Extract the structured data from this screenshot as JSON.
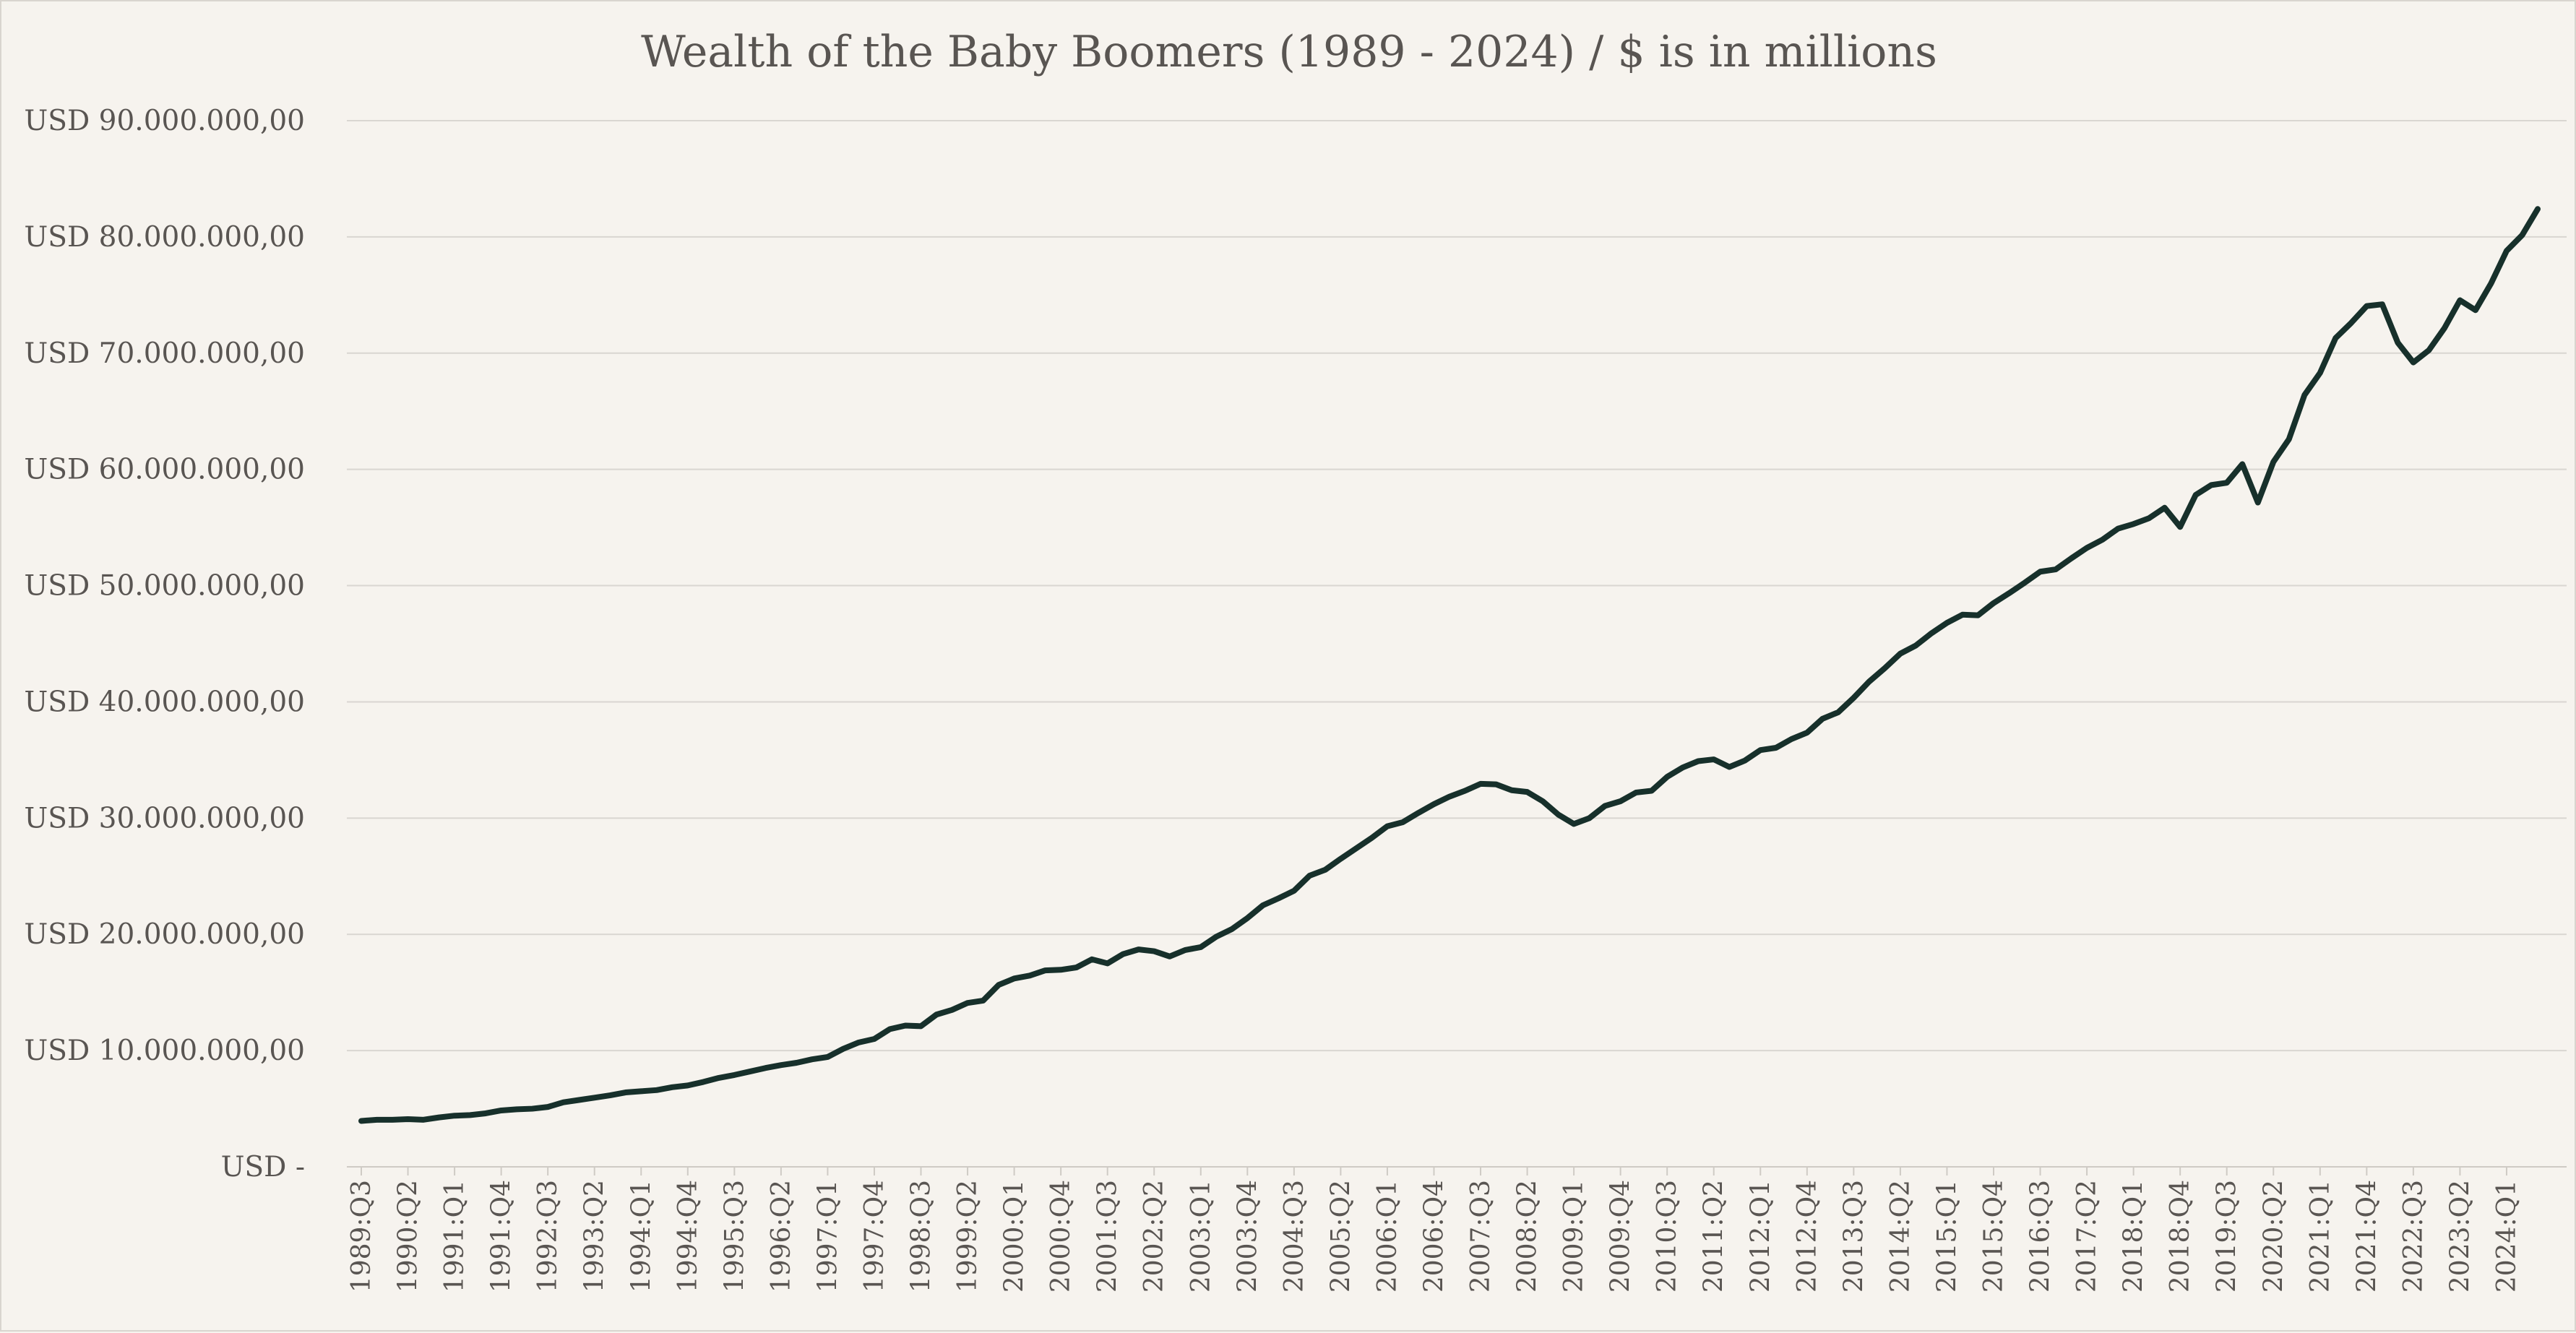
{
  "chart_data": {
    "type": "line",
    "title": "Wealth of the Baby Boomers (1989 - 2024)  / $ is in millions",
    "xlabel": "",
    "ylabel": "",
    "ylim": [
      0,
      90000000
    ],
    "y_ticks": [
      0,
      10000000,
      20000000,
      30000000,
      40000000,
      50000000,
      60000000,
      70000000,
      80000000,
      90000000
    ],
    "y_tick_labels": [
      "USD -",
      "USD 10.000.000,00",
      "USD 20.000.000,00",
      "USD 30.000.000,00",
      "USD 40.000.000,00",
      "USD 50.000.000,00",
      "USD 60.000.000,00",
      "USD 70.000.000,00",
      "USD 80.000.000,00",
      "USD 90.000.000,00"
    ],
    "x_tick_labels": [
      "1989:Q3",
      "1990:Q2",
      "1991:Q1",
      "1991:Q4",
      "1992:Q3",
      "1993:Q2",
      "1994:Q1",
      "1994:Q4",
      "1995:Q3",
      "1996:Q2",
      "1997:Q1",
      "1997:Q4",
      "1998:Q3",
      "1999:Q2",
      "2000:Q1",
      "2000:Q4",
      "2001:Q3",
      "2002:Q2",
      "2003:Q1",
      "2003:Q4",
      "2004:Q3",
      "2005:Q2",
      "2006:Q1",
      "2006:Q4",
      "2007:Q3",
      "2008:Q2",
      "2009:Q1",
      "2009:Q4",
      "2010:Q3",
      "2011:Q2",
      "2012:Q1",
      "2012:Q4",
      "2013:Q3",
      "2014:Q2",
      "2015:Q1",
      "2015:Q4",
      "2016:Q3",
      "2017:Q2",
      "2018:Q1",
      "2018:Q4",
      "2019:Q3",
      "2020:Q2",
      "2021:Q1",
      "2021:Q4",
      "2022:Q3",
      "2023:Q2",
      "2024:Q1"
    ],
    "legend": "none",
    "grid": true,
    "series": [
      {
        "color": "#17302b",
        "x": [
          "1989:Q3",
          "1989:Q4",
          "1990:Q1",
          "1990:Q2",
          "1990:Q3",
          "1990:Q4",
          "1991:Q1",
          "1991:Q2",
          "1991:Q3",
          "1991:Q4",
          "1992:Q1",
          "1992:Q2",
          "1992:Q3",
          "1992:Q4",
          "1993:Q1",
          "1993:Q2",
          "1993:Q3",
          "1993:Q4",
          "1994:Q1",
          "1994:Q2",
          "1994:Q3",
          "1994:Q4",
          "1995:Q1",
          "1995:Q2",
          "1995:Q3",
          "1995:Q4",
          "1996:Q1",
          "1996:Q2",
          "1996:Q3",
          "1996:Q4",
          "1997:Q1",
          "1997:Q2",
          "1997:Q3",
          "1997:Q4",
          "1998:Q1",
          "1998:Q2",
          "1998:Q3",
          "1998:Q4",
          "1999:Q1",
          "1999:Q2",
          "1999:Q3",
          "1999:Q4",
          "2000:Q1",
          "2000:Q2",
          "2000:Q3",
          "2000:Q4",
          "2001:Q1",
          "2001:Q2",
          "2001:Q3",
          "2001:Q4",
          "2002:Q1",
          "2002:Q2",
          "2002:Q3",
          "2002:Q4",
          "2003:Q1",
          "2003:Q2",
          "2003:Q3",
          "2003:Q4",
          "2004:Q1",
          "2004:Q2",
          "2004:Q3",
          "2004:Q4",
          "2005:Q1",
          "2005:Q2",
          "2005:Q3",
          "2005:Q4",
          "2006:Q1",
          "2006:Q2",
          "2006:Q3",
          "2006:Q4",
          "2007:Q1",
          "2007:Q2",
          "2007:Q3",
          "2007:Q4",
          "2008:Q1",
          "2008:Q2",
          "2008:Q3",
          "2008:Q4",
          "2009:Q1",
          "2009:Q2",
          "2009:Q3",
          "2009:Q4",
          "2010:Q1",
          "2010:Q2",
          "2010:Q3",
          "2010:Q4",
          "2011:Q1",
          "2011:Q2",
          "2011:Q3",
          "2011:Q4",
          "2012:Q1",
          "2012:Q2",
          "2012:Q3",
          "2012:Q4",
          "2013:Q1",
          "2013:Q2",
          "2013:Q3",
          "2013:Q4",
          "2014:Q1",
          "2014:Q2",
          "2014:Q3",
          "2014:Q4",
          "2015:Q1",
          "2015:Q2",
          "2015:Q3",
          "2015:Q4",
          "2016:Q1",
          "2016:Q2",
          "2016:Q3",
          "2016:Q4",
          "2017:Q1",
          "2017:Q2",
          "2017:Q3",
          "2017:Q4",
          "2018:Q1",
          "2018:Q2",
          "2018:Q3",
          "2018:Q4",
          "2019:Q1",
          "2019:Q2",
          "2019:Q3",
          "2019:Q4",
          "2020:Q1",
          "2020:Q2",
          "2020:Q3",
          "2020:Q4",
          "2021:Q1",
          "2021:Q2",
          "2021:Q3",
          "2021:Q4",
          "2022:Q1",
          "2022:Q2",
          "2022:Q3",
          "2022:Q4",
          "2023:Q1",
          "2023:Q2",
          "2023:Q3",
          "2023:Q4",
          "2024:Q1",
          "2024:Q2",
          "2024:Q3"
        ],
        "values": [
          3950000,
          4050000,
          4050000,
          4100000,
          4050000,
          4250000,
          4400000,
          4450000,
          4600000,
          4850000,
          4950000,
          5000000,
          5150000,
          5550000,
          5750000,
          5950000,
          6150000,
          6400000,
          6500000,
          6600000,
          6850000,
          7000000,
          7300000,
          7650000,
          7900000,
          8200000,
          8500000,
          8750000,
          8950000,
          9250000,
          9450000,
          10150000,
          10700000,
          11000000,
          11850000,
          12150000,
          12100000,
          13100000,
          13500000,
          14100000,
          14300000,
          15650000,
          16200000,
          16450000,
          16900000,
          16950000,
          17150000,
          17850000,
          17500000,
          18300000,
          18700000,
          18550000,
          18100000,
          18650000,
          18900000,
          19800000,
          20450000,
          21400000,
          22500000,
          23100000,
          23750000,
          25050000,
          25550000,
          26500000,
          27400000,
          28300000,
          29300000,
          29650000,
          30450000,
          31200000,
          31850000,
          32350000,
          32950000,
          32900000,
          32400000,
          32250000,
          31450000,
          30300000,
          29500000,
          30000000,
          31050000,
          31450000,
          32200000,
          32350000,
          33550000,
          34350000,
          34900000,
          35050000,
          34400000,
          34950000,
          35850000,
          36050000,
          36800000,
          37350000,
          38550000,
          39100000,
          40350000,
          41750000,
          42900000,
          44150000,
          44850000,
          45900000,
          46800000,
          47500000,
          47450000,
          48500000,
          49350000,
          50250000,
          51200000,
          51400000,
          52350000,
          53250000,
          53950000,
          54900000,
          55300000,
          55800000,
          56700000,
          55050000,
          57800000,
          58650000,
          58850000,
          60450000,
          57150000,
          60650000,
          62600000,
          66400000,
          68300000,
          71300000,
          72600000,
          74050000,
          74200000,
          70900000,
          69200000,
          70250000,
          72150000,
          74550000,
          73700000,
          76000000,
          78800000,
          80150000,
          82400000
        ]
      }
    ]
  }
}
